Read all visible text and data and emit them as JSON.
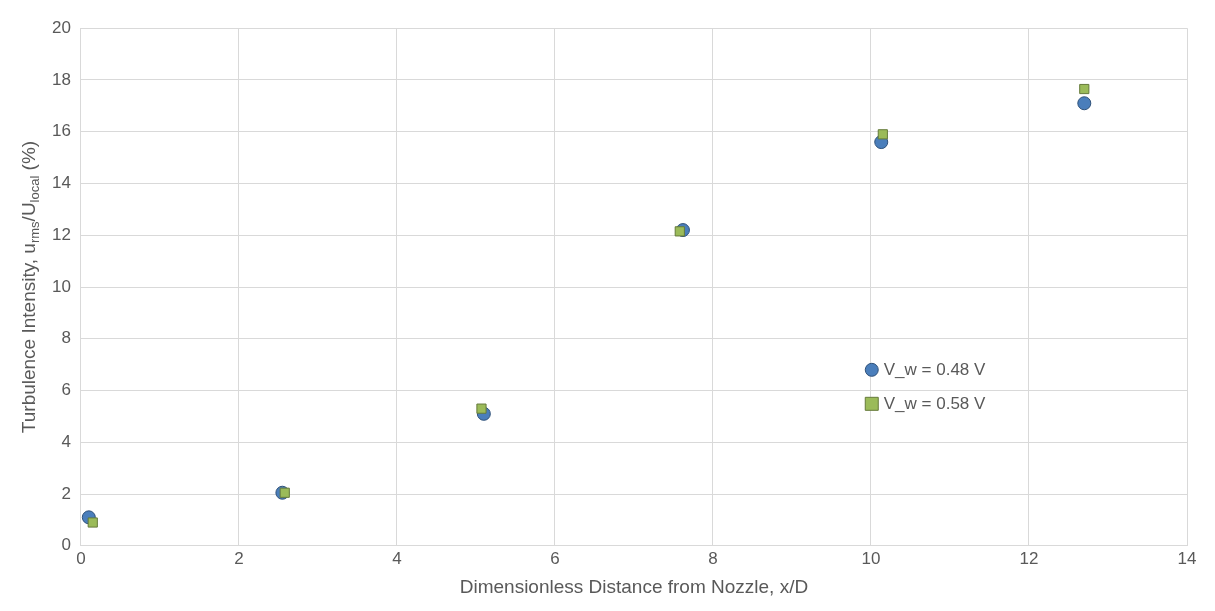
{
  "chart_data": {
    "type": "scatter",
    "xlabel": "Dimensionless Distance from Nozzle, x/D",
    "ylabel": "Turbulence Intensity, u$_{rms}$/U$_{local}$ (%)",
    "xlim": [
      0,
      14
    ],
    "xticks": [
      0,
      2,
      4,
      6,
      8,
      10,
      12,
      14
    ],
    "ylim": [
      0,
      20
    ],
    "yticks": [
      0,
      2,
      4,
      6,
      8,
      10,
      12,
      14,
      16,
      18,
      20
    ],
    "grid": true,
    "legend": "right",
    "series": [
      {
        "name": "V_w = 0.48 V",
        "color": "#4a7ebb",
        "marker": "circle",
        "x": [
          0.1,
          2.55,
          5.1,
          7.62,
          10.13,
          12.7
        ],
        "values": [
          1.1,
          2.05,
          5.1,
          12.2,
          15.6,
          17.1
        ]
      },
      {
        "name": "V_w = 0.58 V",
        "color": "#9bbb59",
        "marker": "square",
        "x": [
          0.15,
          2.58,
          5.07,
          7.58,
          10.15,
          12.7
        ],
        "values": [
          0.9,
          2.05,
          5.3,
          12.15,
          15.9,
          17.65
        ]
      }
    ]
  }
}
